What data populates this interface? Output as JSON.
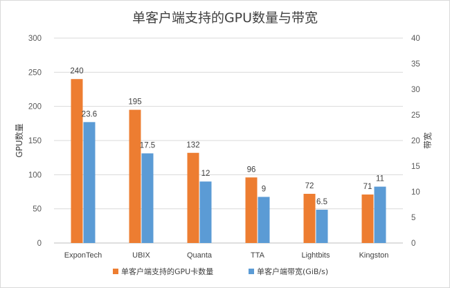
{
  "chart_data": {
    "type": "bar",
    "title": "单客户端支持的GPU数量与带宽",
    "categories": [
      "ExponTech",
      "UBIX",
      "Quanta",
      "TTA",
      "Lightbits",
      "Kingston"
    ],
    "series": [
      {
        "name": "单客户端支持的GPU卡数量",
        "values": [
          240,
          195,
          132,
          96,
          72,
          71
        ],
        "axis": "left",
        "color": "#ED7D31"
      },
      {
        "name": "单客户端带宽(GiB/s)",
        "values": [
          23.6,
          17.5,
          12,
          9,
          6.5,
          11
        ],
        "axis": "right",
        "color": "#5B9BD5"
      }
    ],
    "ylabel": "GPU数量",
    "y2label": "带宽",
    "ylim": [
      0,
      300
    ],
    "y2lim": [
      0,
      40
    ],
    "yticks": [
      0,
      50,
      100,
      150,
      200,
      250,
      300
    ],
    "y2ticks": [
      0,
      5,
      10,
      15,
      20,
      25,
      30,
      35,
      40
    ],
    "grid": true,
    "legend": "bottom"
  }
}
